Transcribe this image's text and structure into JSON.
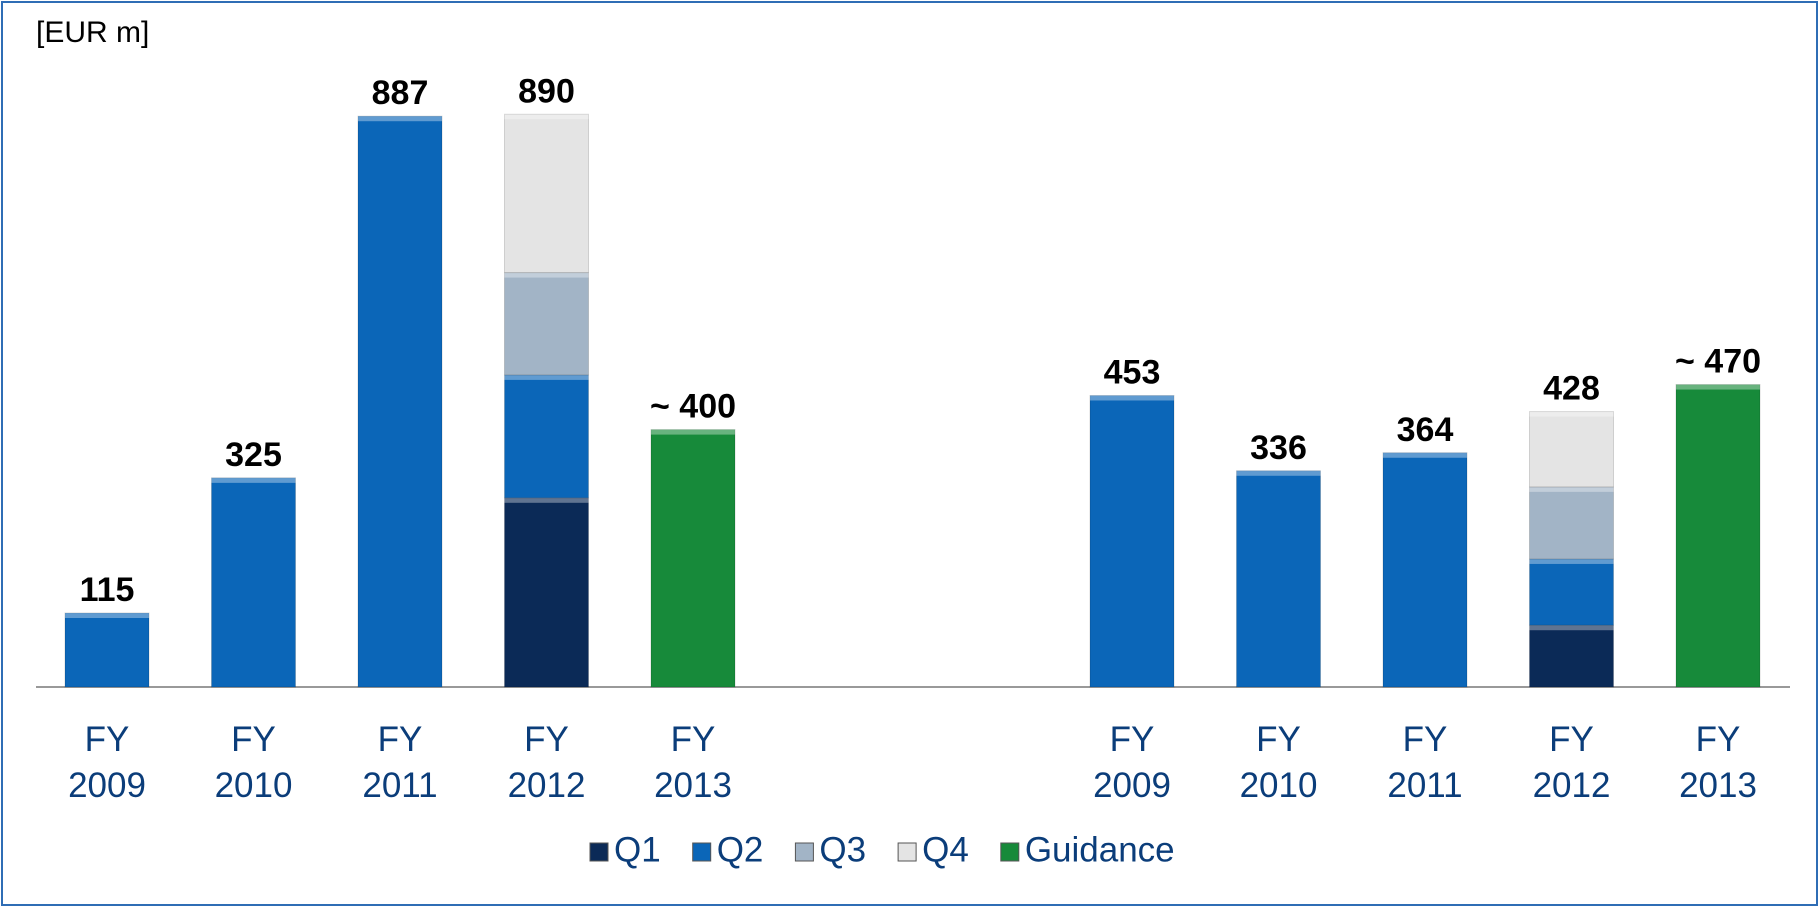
{
  "chart_data": {
    "type": "stacked_bar",
    "subtitle": "[EUR m]",
    "categories": [
      "FY 2009",
      "FY 2010",
      "FY 2011",
      "FY 2012",
      "FY 2013",
      "FY 2009",
      "FY 2010",
      "FY 2011",
      "FY 2012",
      "FY 2013"
    ],
    "series": [
      {
        "name": "Q1",
        "color": "#0b2a57",
        "values": [
          null,
          null,
          null,
          294,
          null,
          null,
          null,
          null,
          96,
          null
        ]
      },
      {
        "name": "Q2",
        "color": "#0b66b8",
        "values": [
          115,
          325,
          887,
          191,
          null,
          453,
          336,
          364,
          103,
          null
        ]
      },
      {
        "name": "Q3",
        "color": "#a2b4c6",
        "values": [
          null,
          null,
          null,
          159,
          null,
          null,
          null,
          null,
          112,
          null
        ]
      },
      {
        "name": "Q4",
        "color": "#e4e4e4",
        "values": [
          null,
          null,
          null,
          246,
          null,
          null,
          null,
          null,
          117,
          null
        ]
      },
      {
        "name": "Guidance",
        "color": "#178a3a",
        "values": [
          null,
          null,
          null,
          null,
          400,
          null,
          null,
          null,
          null,
          470
        ]
      }
    ],
    "totals": [
      115,
      325,
      887,
      890,
      400,
      453,
      336,
      364,
      428,
      470
    ],
    "total_labels": [
      "115",
      "325",
      "887",
      "890",
      "~ 400",
      "453",
      "336",
      "364",
      "428",
      "~ 470"
    ]
  }
}
